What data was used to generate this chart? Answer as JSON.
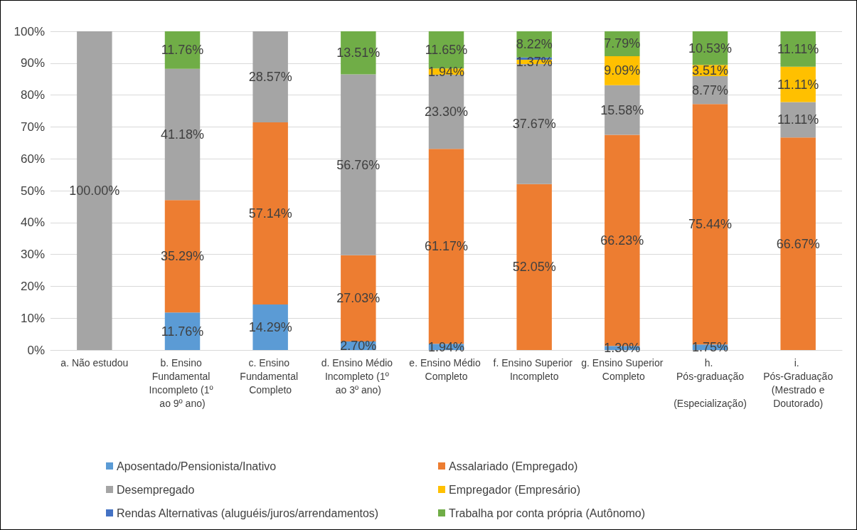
{
  "chart_data": {
    "type": "bar",
    "stacked": true,
    "categories": [
      "a. Não estudou",
      "b. Ensino Fundamental Incompleto (1º ao 9º ano)",
      "c. Ensino Fundamental Completo",
      "d. Ensino Médio Incompleto (1º ao 3º ano)",
      "e. Ensino Médio Completo",
      "f. Ensino Superior Incompleto",
      "g. Ensino Superior Completo",
      "h. Pós-graduação (Especialização)",
      "i. Pós-Graduação (Mestrado e Doutorado)"
    ],
    "series": [
      {
        "name": "Aposentado/Pensionista/Inativo",
        "color": "#5b9bd5",
        "values": [
          null,
          11.76,
          14.29,
          2.7,
          1.94,
          null,
          1.3,
          1.75,
          null
        ],
        "value_labels": [
          null,
          "11.76%",
          "14.29%",
          "2.70%",
          "1.94%",
          null,
          "1.30%",
          "1.75%",
          null
        ]
      },
      {
        "name": "Assalariado (Empregado)",
        "color": "#ed7d31",
        "values": [
          null,
          35.29,
          57.14,
          27.03,
          61.17,
          52.05,
          66.23,
          75.44,
          66.67
        ],
        "value_labels": [
          null,
          "35.29%",
          "57.14%",
          "27.03%",
          "61.17%",
          "52.05%",
          "66.23%",
          "75.44%",
          "66.67%"
        ]
      },
      {
        "name": "Desempregado",
        "color": "#a5a5a5",
        "values": [
          100,
          41.18,
          28.57,
          56.76,
          23.3,
          37.67,
          15.58,
          8.77,
          11.11
        ],
        "value_labels": [
          "100.00%",
          "41.18%",
          "28.57%",
          "56.76%",
          "23.30%",
          "37.67%",
          "15.58%",
          "8.77%",
          "11.11%"
        ]
      },
      {
        "name": "Empregador (Empresário)",
        "color": "#ffc000",
        "values": [
          null,
          null,
          null,
          null,
          1.94,
          1.37,
          9.09,
          3.51,
          11.11
        ],
        "value_labels": [
          null,
          null,
          null,
          null,
          "1.94%",
          "1.37%",
          "9.09%",
          "3.51%",
          "11.11%"
        ]
      },
      {
        "name": "Rendas Alternativas (aluguéis/juros/arrendamentos)",
        "color": "#4472c4",
        "values": [
          null,
          null,
          null,
          null,
          null,
          0.68,
          null,
          null,
          null
        ],
        "value_labels": [
          null,
          null,
          null,
          null,
          null,
          null,
          null,
          null,
          null
        ]
      },
      {
        "name": "Trabalha por conta própria (Autônomo)",
        "color": "#70ad47",
        "values": [
          null,
          11.76,
          null,
          13.51,
          11.65,
          8.22,
          7.79,
          10.53,
          11.11
        ],
        "value_labels": [
          null,
          "11.76%",
          null,
          "13.51%",
          "11.65%",
          "8.22%",
          "7.79%",
          "10.53%",
          "11.11%"
        ]
      }
    ],
    "ylim": [
      0,
      100
    ],
    "yticks": [
      {
        "value": 0,
        "label": "0%"
      },
      {
        "value": 10,
        "label": "10%"
      },
      {
        "value": 20,
        "label": "20%"
      },
      {
        "value": 30,
        "label": "30%"
      },
      {
        "value": 40,
        "label": "40%"
      },
      {
        "value": 50,
        "label": "50%"
      },
      {
        "value": 60,
        "label": "60%"
      },
      {
        "value": 70,
        "label": "70%"
      },
      {
        "value": 80,
        "label": "80%"
      },
      {
        "value": 90,
        "label": "90%"
      },
      {
        "value": 100,
        "label": "100%"
      }
    ],
    "grid": "y",
    "legend": "bottom"
  }
}
